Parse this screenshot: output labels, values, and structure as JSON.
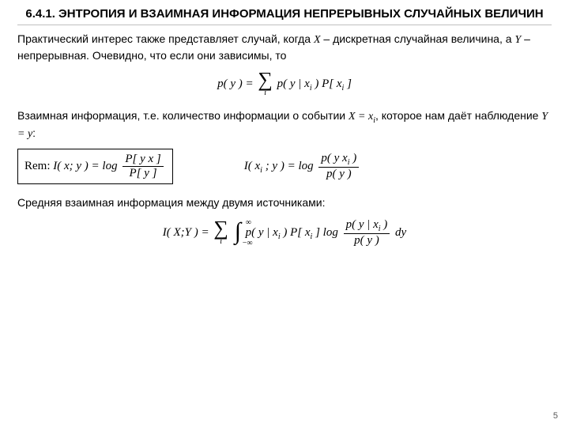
{
  "title": "6.4.1. ЭНТРОПИЯ И ВЗАИМНАЯ ИНФОРМАЦИЯ НЕПРЕРЫВНЫХ СЛУЧАЙНЫХ ВЕЛИЧИН",
  "p1_a": "Практический интерес также представляет случай, когда ",
  "p1_x": "X",
  "p1_b": " – дискретная случайная величина, а ",
  "p1_y": "Y",
  "p1_c": " – непрерывная. Очевидно, что если они зависимы, то",
  "f1_lhs": "p( y ) =",
  "f1_rhs": " p( y | x",
  "f1_rhs2": " ) P[ x",
  "f1_rhs3": " ]",
  "p2_a": "Взаимная информация, т.е. количество информации о событии ",
  "p2_xeq": "X = x",
  "p2_sub": "i",
  "p2_b": ", которое нам даёт наблюдение ",
  "p2_yeq": "Y = y",
  "p2_c": ":",
  "rem_label": "Rem:",
  "rem_lhs": " I( x; y ) = log ",
  "rem_num": "P[ y   x ]",
  "rem_den": "P[ y ]",
  "f2_lhs": "I( x",
  "f2_lhs2": " ; y ) = log ",
  "f2_num_a": "p( y   x",
  "f2_num_b": " )",
  "f2_den": "p( y )",
  "p3": "Средняя взаимная информация между двумя источниками:",
  "f3_lhs": "I( X;Y ) =",
  "f3_mid_a": " p( y | x",
  "f3_mid_b": " ) P[ x",
  "f3_mid_c": " ] log ",
  "f3_num_a": "p( y | x",
  "f3_num_b": " )",
  "f3_den": "p( y )",
  "f3_tail": " dy",
  "sub_i": "i",
  "inf": "∞",
  "neg_inf": "−∞",
  "pagenum": "5"
}
